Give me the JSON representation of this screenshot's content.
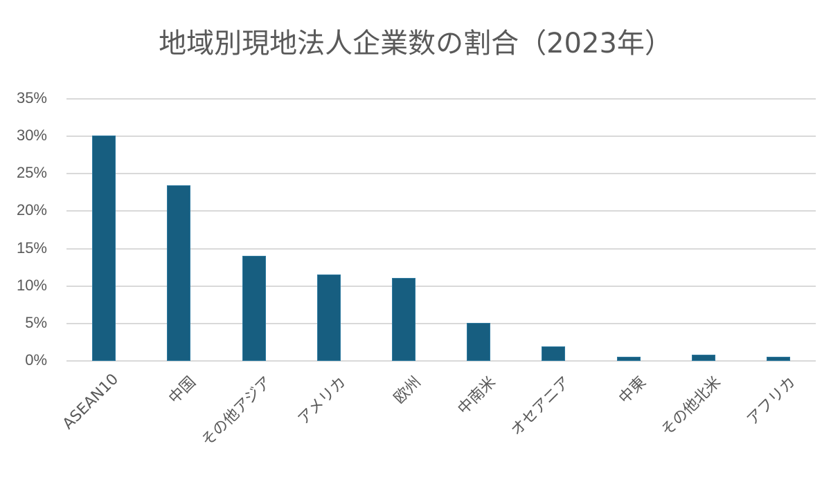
{
  "chart_data": {
    "type": "bar",
    "title": "地域別現地法人企業数の割合（2023年）",
    "xlabel": "",
    "ylabel": "",
    "categories": [
      "ASEAN10",
      "中国",
      "その他アジア",
      "アメリカ",
      "欧州",
      "中南米",
      "オセアニア",
      "中東",
      "その他北米",
      "アフリカ"
    ],
    "values": [
      30.1,
      23.5,
      14.0,
      11.5,
      11.1,
      5.1,
      1.9,
      0.6,
      0.8,
      0.6
    ],
    "value_unit": "%",
    "ylim": [
      0,
      35
    ],
    "yticks": [
      "0%",
      "5%",
      "10%",
      "15%",
      "20%",
      "25%",
      "30%",
      "35%"
    ],
    "grid": true,
    "legend": "none",
    "bar_color": "#175e80",
    "x_label_rotation": -45
  }
}
